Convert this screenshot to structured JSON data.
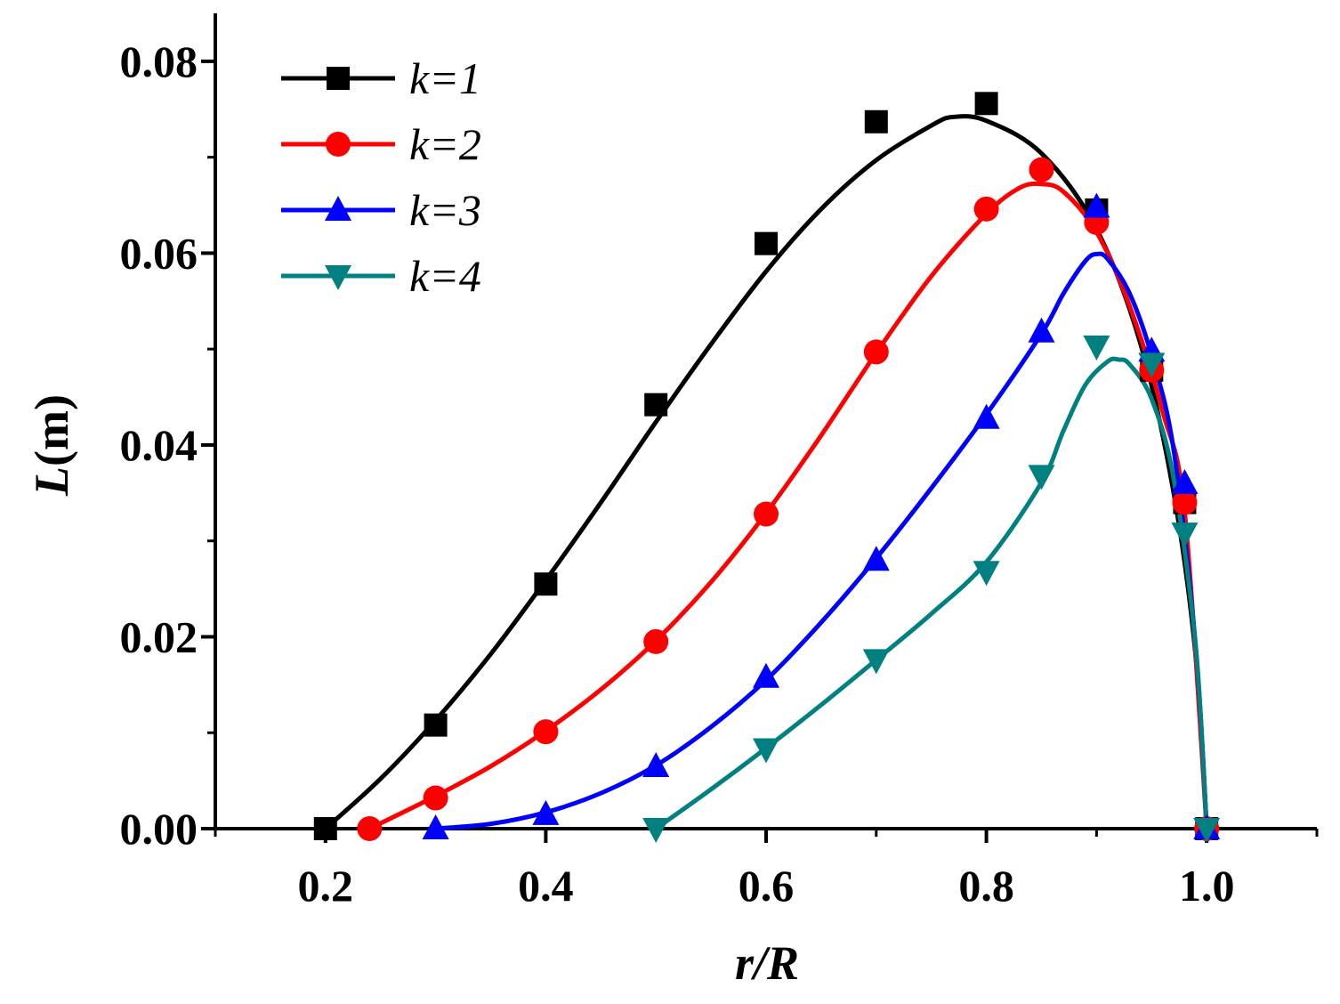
{
  "chart_data": {
    "type": "line",
    "title": "",
    "xlabel": "r/R",
    "ylabel_italic": "L",
    "ylabel_unit": "(m)",
    "xlim": [
      0.1,
      1.1
    ],
    "ylim": [
      0.0,
      0.085
    ],
    "x_ticks": [
      "0.2",
      "0.4",
      "0.6",
      "0.8",
      "1.0"
    ],
    "x_tick_values": [
      0.2,
      0.4,
      0.6,
      0.8,
      1.0
    ],
    "y_ticks": [
      "0.00",
      "0.02",
      "0.04",
      "0.06",
      "0.08"
    ],
    "y_tick_values": [
      0.0,
      0.02,
      0.04,
      0.06,
      0.08
    ],
    "grid": false,
    "legend_position": "top-left",
    "series": [
      {
        "name": "k=1",
        "color": "#000000",
        "marker": "square",
        "x": [
          0.2,
          0.3,
          0.4,
          0.5,
          0.6,
          0.7,
          0.8,
          0.9,
          0.95,
          0.98,
          1.0
        ],
        "values": [
          0.0,
          0.0108,
          0.0255,
          0.0442,
          0.061,
          0.0737,
          0.0756,
          0.0645,
          0.0478,
          0.034,
          0.0
        ],
        "curve_x": [
          0.2,
          0.25,
          0.3,
          0.35,
          0.4,
          0.45,
          0.5,
          0.55,
          0.6,
          0.65,
          0.7,
          0.75,
          0.77,
          0.8,
          0.85,
          0.9,
          0.94,
          0.97,
          0.99,
          1.0
        ],
        "curve_y": [
          0.0,
          0.0052,
          0.0113,
          0.0182,
          0.0259,
          0.034,
          0.0424,
          0.0505,
          0.0581,
          0.0646,
          0.0697,
          0.0733,
          0.0742,
          0.0738,
          0.0704,
          0.0625,
          0.0505,
          0.035,
          0.018,
          0.0
        ]
      },
      {
        "name": "k=2",
        "color": "#ff0000",
        "marker": "circle",
        "x": [
          0.24,
          0.3,
          0.4,
          0.5,
          0.6,
          0.7,
          0.8,
          0.85,
          0.9,
          0.95,
          0.98,
          1.0
        ],
        "values": [
          0.0,
          0.0032,
          0.0101,
          0.0195,
          0.0328,
          0.0497,
          0.0646,
          0.0687,
          0.0632,
          0.0478,
          0.034,
          0.0
        ],
        "curve_x": [
          0.24,
          0.3,
          0.35,
          0.4,
          0.45,
          0.5,
          0.55,
          0.6,
          0.65,
          0.7,
          0.75,
          0.8,
          0.83,
          0.85,
          0.87,
          0.9,
          0.93,
          0.96,
          0.98,
          1.0
        ],
        "curve_y": [
          0.0,
          0.0034,
          0.0065,
          0.0102,
          0.0145,
          0.0196,
          0.0257,
          0.0329,
          0.041,
          0.0496,
          0.0576,
          0.0641,
          0.0668,
          0.0672,
          0.0664,
          0.0622,
          0.0545,
          0.0435,
          0.033,
          0.0
        ]
      },
      {
        "name": "k=3",
        "color": "#0000ff",
        "marker": "triangle-up",
        "x": [
          0.3,
          0.4,
          0.5,
          0.6,
          0.7,
          0.8,
          0.85,
          0.9,
          0.95,
          0.98,
          1.0
        ],
        "values": [
          0.0,
          0.0015,
          0.0065,
          0.0158,
          0.028,
          0.0428,
          0.0518,
          0.0648,
          0.0498,
          0.036,
          0.0
        ],
        "curve_x": [
          0.3,
          0.35,
          0.4,
          0.45,
          0.5,
          0.55,
          0.6,
          0.65,
          0.7,
          0.75,
          0.8,
          0.85,
          0.87,
          0.89,
          0.9,
          0.91,
          0.93,
          0.95,
          0.97,
          0.99,
          1.0
        ],
        "curve_y": [
          0.0,
          0.0005,
          0.0017,
          0.0037,
          0.0066,
          0.0106,
          0.0155,
          0.0215,
          0.0282,
          0.0355,
          0.0432,
          0.0516,
          0.0558,
          0.0592,
          0.0599,
          0.0594,
          0.0558,
          0.0493,
          0.0395,
          0.019,
          0.0
        ]
      },
      {
        "name": "k=4",
        "color": "#008080",
        "marker": "triangle-down",
        "x": [
          0.5,
          0.6,
          0.7,
          0.8,
          0.85,
          0.9,
          0.95,
          0.98,
          1.0
        ],
        "values": [
          0.0,
          0.0083,
          0.0176,
          0.0268,
          0.0368,
          0.0503,
          0.0485,
          0.0308,
          0.0
        ],
        "curve_x": [
          0.5,
          0.55,
          0.6,
          0.65,
          0.7,
          0.75,
          0.8,
          0.85,
          0.87,
          0.89,
          0.91,
          0.92,
          0.93,
          0.95,
          0.97,
          0.99,
          1.0
        ],
        "curve_y": [
          0.0,
          0.0041,
          0.0084,
          0.0129,
          0.0176,
          0.0224,
          0.0278,
          0.0361,
          0.0415,
          0.0463,
          0.0487,
          0.0489,
          0.0484,
          0.0448,
          0.0365,
          0.019,
          0.0
        ]
      }
    ]
  }
}
